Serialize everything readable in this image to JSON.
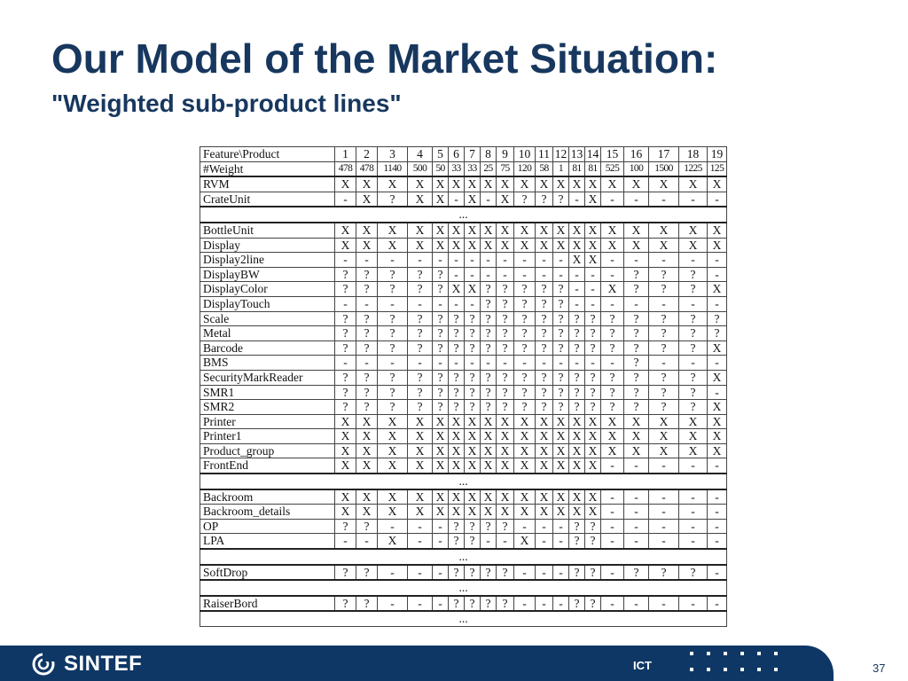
{
  "title": "Our Model of the Market Situation:",
  "subtitle": "\"Weighted sub-product lines\"",
  "table": {
    "header_label": "Feature\\Product",
    "products": [
      "1",
      "2",
      "3",
      "4",
      "5",
      "6",
      "7",
      "8",
      "9",
      "10",
      "11",
      "12",
      "13",
      "14",
      "15",
      "16",
      "17",
      "18",
      "19"
    ],
    "weight_label": "#Weight",
    "weights": [
      "478",
      "478",
      "1140",
      "500",
      "50",
      "33",
      "33",
      "25",
      "75",
      "120",
      "58",
      "1",
      "81",
      "81",
      "525",
      "100",
      "1500",
      "1225",
      "125"
    ],
    "groups": [
      {
        "rows": [
          {
            "feature": "RVM",
            "values": [
              "X",
              "X",
              "X",
              "X",
              "X",
              "X",
              "X",
              "X",
              "X",
              "X",
              "X",
              "X",
              "X",
              "X",
              "X",
              "X",
              "X",
              "X",
              "X"
            ]
          },
          {
            "feature": "CrateUnit",
            "values": [
              "-",
              "X",
              "?",
              "X",
              "X",
              "-",
              "X",
              "-",
              "X",
              "?",
              "?",
              "?",
              "-",
              "X",
              "-",
              "-",
              "-",
              "-",
              "-"
            ]
          }
        ]
      },
      {
        "rows": [
          {
            "feature": "BottleUnit",
            "values": [
              "X",
              "X",
              "X",
              "X",
              "X",
              "X",
              "X",
              "X",
              "X",
              "X",
              "X",
              "X",
              "X",
              "X",
              "X",
              "X",
              "X",
              "X",
              "X"
            ]
          },
          {
            "feature": "Display",
            "values": [
              "X",
              "X",
              "X",
              "X",
              "X",
              "X",
              "X",
              "X",
              "X",
              "X",
              "X",
              "X",
              "X",
              "X",
              "X",
              "X",
              "X",
              "X",
              "X"
            ]
          },
          {
            "feature": "Display2line",
            "values": [
              "-",
              "-",
              "-",
              "-",
              "-",
              "-",
              "-",
              "-",
              "-",
              "-",
              "-",
              "-",
              "X",
              "X",
              "-",
              "-",
              "-",
              "-",
              "-"
            ]
          },
          {
            "feature": "DisplayBW",
            "values": [
              "?",
              "?",
              "?",
              "?",
              "?",
              "-",
              "-",
              "-",
              "-",
              "-",
              "-",
              "-",
              "-",
              "-",
              "-",
              "?",
              "?",
              "?",
              "-"
            ]
          },
          {
            "feature": "DisplayColor",
            "values": [
              "?",
              "?",
              "?",
              "?",
              "?",
              "X",
              "X",
              "?",
              "?",
              "?",
              "?",
              "?",
              "-",
              "-",
              "X",
              "?",
              "?",
              "?",
              "X"
            ]
          },
          {
            "feature": "DisplayTouch",
            "values": [
              "-",
              "-",
              "-",
              "-",
              "-",
              "-",
              "-",
              "?",
              "?",
              "?",
              "?",
              "?",
              "-",
              "-",
              "-",
              "-",
              "-",
              "-",
              "-"
            ]
          },
          {
            "feature": "Scale",
            "values": [
              "?",
              "?",
              "?",
              "?",
              "?",
              "?",
              "?",
              "?",
              "?",
              "?",
              "?",
              "?",
              "?",
              "?",
              "?",
              "?",
              "?",
              "?",
              "?"
            ]
          },
          {
            "feature": "Metal",
            "values": [
              "?",
              "?",
              "?",
              "?",
              "?",
              "?",
              "?",
              "?",
              "?",
              "?",
              "?",
              "?",
              "?",
              "?",
              "?",
              "?",
              "?",
              "?",
              "?"
            ]
          },
          {
            "feature": "Barcode",
            "values": [
              "?",
              "?",
              "?",
              "?",
              "?",
              "?",
              "?",
              "?",
              "?",
              "?",
              "?",
              "?",
              "?",
              "?",
              "?",
              "?",
              "?",
              "?",
              "X"
            ]
          },
          {
            "feature": "BMS",
            "values": [
              "-",
              "-",
              "-",
              "-",
              "-",
              "-",
              "-",
              "-",
              "-",
              "-",
              "-",
              "-",
              "-",
              "-",
              "-",
              "?",
              "-",
              "-",
              "-"
            ]
          },
          {
            "feature": "SecurityMarkReader",
            "values": [
              "?",
              "?",
              "?",
              "?",
              "?",
              "?",
              "?",
              "?",
              "?",
              "?",
              "?",
              "?",
              "?",
              "?",
              "?",
              "?",
              "?",
              "?",
              "X"
            ]
          },
          {
            "feature": "SMR1",
            "values": [
              "?",
              "?",
              "?",
              "?",
              "?",
              "?",
              "?",
              "?",
              "?",
              "?",
              "?",
              "?",
              "?",
              "?",
              "?",
              "?",
              "?",
              "?",
              "-"
            ]
          },
          {
            "feature": "SMR2",
            "values": [
              "?",
              "?",
              "?",
              "?",
              "?",
              "?",
              "?",
              "?",
              "?",
              "?",
              "?",
              "?",
              "?",
              "?",
              "?",
              "?",
              "?",
              "?",
              "X"
            ]
          },
          {
            "feature": "Printer",
            "values": [
              "X",
              "X",
              "X",
              "X",
              "X",
              "X",
              "X",
              "X",
              "X",
              "X",
              "X",
              "X",
              "X",
              "X",
              "X",
              "X",
              "X",
              "X",
              "X"
            ]
          },
          {
            "feature": "Printer1",
            "values": [
              "X",
              "X",
              "X",
              "X",
              "X",
              "X",
              "X",
              "X",
              "X",
              "X",
              "X",
              "X",
              "X",
              "X",
              "X",
              "X",
              "X",
              "X",
              "X"
            ]
          },
          {
            "feature": "Product_group",
            "values": [
              "X",
              "X",
              "X",
              "X",
              "X",
              "X",
              "X",
              "X",
              "X",
              "X",
              "X",
              "X",
              "X",
              "X",
              "X",
              "X",
              "X",
              "X",
              "X"
            ]
          },
          {
            "feature": "FrontEnd",
            "values": [
              "X",
              "X",
              "X",
              "X",
              "X",
              "X",
              "X",
              "X",
              "X",
              "X",
              "X",
              "X",
              "X",
              "X",
              "-",
              "-",
              "-",
              "-",
              "-"
            ]
          }
        ]
      },
      {
        "rows": [
          {
            "feature": "Backroom",
            "values": [
              "X",
              "X",
              "X",
              "X",
              "X",
              "X",
              "X",
              "X",
              "X",
              "X",
              "X",
              "X",
              "X",
              "X",
              "-",
              "-",
              "-",
              "-",
              "-"
            ]
          },
          {
            "feature": "Backroom_details",
            "values": [
              "X",
              "X",
              "X",
              "X",
              "X",
              "X",
              "X",
              "X",
              "X",
              "X",
              "X",
              "X",
              "X",
              "X",
              "-",
              "-",
              "-",
              "-",
              "-"
            ]
          },
          {
            "feature": "OP",
            "values": [
              "?",
              "?",
              "-",
              "-",
              "-",
              "?",
              "?",
              "?",
              "?",
              "-",
              "-",
              "-",
              "?",
              "?",
              "-",
              "-",
              "-",
              "-",
              "-"
            ]
          },
          {
            "feature": "LPA",
            "values": [
              "-",
              "-",
              "X",
              "-",
              "-",
              "?",
              "?",
              "-",
              "-",
              "X",
              "-",
              "-",
              "?",
              "?",
              "-",
              "-",
              "-",
              "-",
              "-"
            ]
          }
        ]
      },
      {
        "rows": [
          {
            "feature": "SoftDrop",
            "values": [
              "?",
              "?",
              "-",
              "-",
              "-",
              "?",
              "?",
              "?",
              "?",
              "-",
              "-",
              "-",
              "?",
              "?",
              "-",
              "?",
              "?",
              "?",
              "-"
            ]
          }
        ]
      },
      {
        "rows": [
          {
            "feature": "RaiserBord",
            "values": [
              "?",
              "?",
              "-",
              "-",
              "-",
              "?",
              "?",
              "?",
              "?",
              "-",
              "-",
              "-",
              "?",
              "?",
              "-",
              "-",
              "-",
              "-",
              "-"
            ]
          }
        ]
      }
    ],
    "ellipsis": "..."
  },
  "footer": {
    "logo_text": "SINTEF",
    "department": "ICT",
    "page_number": "37"
  }
}
